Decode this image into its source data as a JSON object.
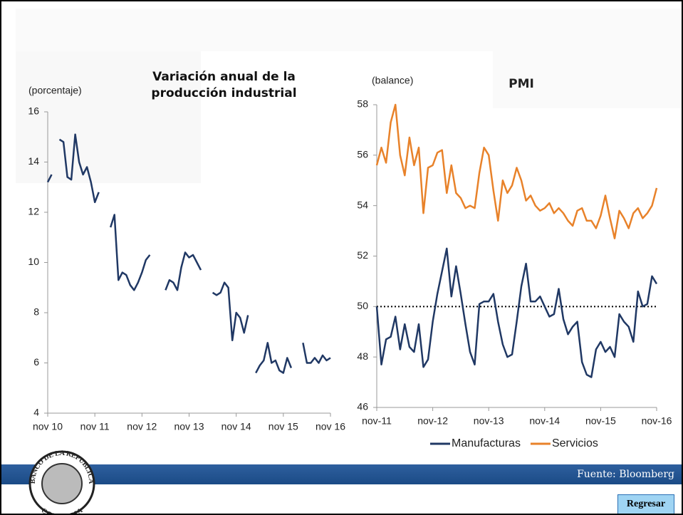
{
  "chart_data": [
    {
      "type": "line",
      "title": "Variación anual de la producción industrial",
      "ylabel": "(porcentaje)",
      "categories": [
        "nov 10",
        null,
        null,
        null,
        null,
        null,
        null,
        null,
        null,
        null,
        null,
        null,
        "nov 11",
        null,
        null,
        null,
        null,
        null,
        null,
        null,
        null,
        null,
        null,
        null,
        "nov 12",
        null,
        null,
        null,
        null,
        null,
        null,
        null,
        null,
        null,
        null,
        null,
        "nov 13",
        null,
        null,
        null,
        null,
        null,
        null,
        null,
        null,
        null,
        null,
        null,
        "nov 14",
        null,
        null,
        null,
        null,
        null,
        null,
        null,
        null,
        null,
        null,
        null,
        "nov 15",
        null,
        null,
        null,
        null,
        null,
        null,
        null,
        null,
        null,
        null,
        null,
        "nov 16"
      ],
      "values": [
        13.2,
        13.5,
        null,
        14.9,
        14.8,
        13.4,
        13.3,
        15.1,
        14.0,
        13.5,
        13.8,
        13.2,
        12.4,
        12.8,
        null,
        null,
        11.4,
        11.9,
        9.3,
        9.6,
        9.5,
        9.1,
        8.9,
        9.2,
        9.6,
        10.1,
        10.3,
        null,
        null,
        null,
        8.9,
        9.3,
        9.2,
        8.9,
        9.8,
        10.4,
        10.2,
        10.3,
        10.0,
        9.7,
        null,
        null,
        8.8,
        8.7,
        8.8,
        9.2,
        9.0,
        6.9,
        8.0,
        7.8,
        7.2,
        7.9,
        null,
        5.6,
        5.9,
        6.1,
        6.8,
        6.0,
        6.1,
        5.7,
        5.6,
        6.2,
        5.8,
        null,
        null,
        6.8,
        6.0,
        6.0,
        6.2,
        6.0,
        6.3,
        6.1,
        6.2
      ],
      "color": "#203864",
      "ylim": [
        4,
        16
      ],
      "yticks": [
        4,
        6,
        8,
        10,
        12,
        14,
        16
      ]
    },
    {
      "type": "line",
      "title": "PMI",
      "ylabel": "(balance)",
      "categories": [
        "nov-11",
        null,
        null,
        null,
        null,
        null,
        null,
        null,
        null,
        null,
        null,
        null,
        "nov-12",
        null,
        null,
        null,
        null,
        null,
        null,
        null,
        null,
        null,
        null,
        null,
        "nov-13",
        null,
        null,
        null,
        null,
        null,
        null,
        null,
        null,
        null,
        null,
        null,
        "nov-14",
        null,
        null,
        null,
        null,
        null,
        null,
        null,
        null,
        null,
        null,
        null,
        "nov-15",
        null,
        null,
        null,
        null,
        null,
        null,
        null,
        null,
        null,
        null,
        null,
        "nov-16"
      ],
      "series": [
        {
          "name": "Manufacturas",
          "color": "#203864",
          "values": [
            50.0,
            47.7,
            48.7,
            48.8,
            49.6,
            48.3,
            49.3,
            48.4,
            48.2,
            49.3,
            47.6,
            47.9,
            49.4,
            50.5,
            51.4,
            52.3,
            50.4,
            51.6,
            50.5,
            49.3,
            48.2,
            47.7,
            50.1,
            50.2,
            50.2,
            50.5,
            49.4,
            48.5,
            48.0,
            48.1,
            49.4,
            50.8,
            51.7,
            50.2,
            50.2,
            50.4,
            50.0,
            49.6,
            49.7,
            50.7,
            49.5,
            48.9,
            49.2,
            49.4,
            47.8,
            47.3,
            47.2,
            48.3,
            48.6,
            48.2,
            48.4,
            48.0,
            49.7,
            49.4,
            49.2,
            48.6,
            50.6,
            50.0,
            50.1,
            51.2,
            50.9
          ]
        },
        {
          "name": "Servicios",
          "color": "#e8822a",
          "values": [
            55.6,
            56.3,
            55.7,
            57.3,
            58.0,
            56.0,
            55.2,
            56.7,
            55.6,
            56.3,
            53.7,
            55.5,
            55.6,
            56.1,
            56.2,
            54.5,
            55.6,
            54.5,
            54.3,
            53.9,
            54.0,
            53.9,
            55.3,
            56.3,
            56.0,
            54.6,
            53.4,
            55.0,
            54.5,
            54.8,
            55.5,
            55.0,
            54.2,
            54.4,
            54.0,
            53.8,
            53.9,
            54.1,
            53.7,
            53.9,
            53.7,
            53.4,
            53.2,
            53.8,
            53.9,
            53.4,
            53.4,
            53.1,
            53.6,
            54.4,
            53.5,
            52.7,
            53.8,
            53.5,
            53.1,
            53.7,
            53.9,
            53.5,
            53.7,
            54.0,
            54.7
          ]
        }
      ],
      "hline": 50,
      "ylim": [
        46,
        58
      ],
      "yticks": [
        46,
        48,
        50,
        52,
        54,
        56,
        58
      ],
      "legend": "bottom"
    }
  ],
  "footer": {
    "source": "Fuente: Bloomberg",
    "button": "Regresar",
    "logo_top": "BANCO DE LA REPUBLICA",
    "logo_bottom": "COLOMBIA"
  }
}
